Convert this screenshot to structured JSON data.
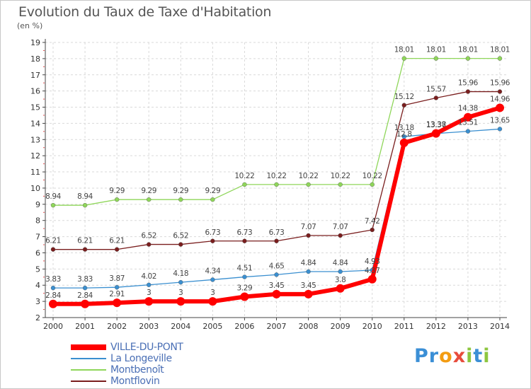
{
  "header": {
    "title": "Evolution du Taux de Taxe d'Habitation",
    "subtitle": "(en %)"
  },
  "logo": {
    "text": "Proxiti",
    "letters": [
      {
        "ch": "P",
        "color": "#3b8fd6"
      },
      {
        "ch": "r",
        "color": "#3b8fd6"
      },
      {
        "ch": "o",
        "color": "#f39c12"
      },
      {
        "ch": "x",
        "color": "#e74c3c"
      },
      {
        "ch": "i",
        "color": "#8dc63f"
      },
      {
        "ch": "t",
        "color": "#3b8fd6"
      },
      {
        "ch": "i",
        "color": "#8dc63f"
      }
    ]
  },
  "chart_data": {
    "type": "line",
    "x": [
      "2000",
      "2001",
      "2002",
      "2003",
      "2004",
      "2005",
      "2006",
      "2007",
      "2008",
      "2009",
      "2010",
      "2011",
      "2012",
      "2013",
      "2014"
    ],
    "ylim": [
      2,
      19
    ],
    "yticks": [
      "2",
      "3",
      "4",
      "5",
      "6",
      "7",
      "8",
      "9",
      "10",
      "11",
      "12",
      "13",
      "14",
      "15",
      "16",
      "17",
      "18",
      "19"
    ],
    "grid": true,
    "legend_position": "bottom-left",
    "series": [
      {
        "name": "VILLE-DU-PONT",
        "color": "#ff0000",
        "values": [
          2.84,
          2.84,
          2.91,
          3,
          3,
          3,
          3.29,
          3.45,
          3.45,
          3.8,
          4.37,
          12.8,
          13.38,
          14.38,
          14.96
        ],
        "labels": [
          "2.84",
          "2.84",
          "2.91",
          "3",
          "3",
          "3",
          "3.29",
          "3.45",
          "3.45",
          "3.8",
          "4.37",
          "12.8",
          "13.38",
          "14.38",
          "14.96"
        ]
      },
      {
        "name": "La Longeville",
        "color": "#3a8fd0",
        "values": [
          3.83,
          3.83,
          3.87,
          4.02,
          4.18,
          4.34,
          4.51,
          4.65,
          4.84,
          4.84,
          4.93,
          13.18,
          13.37,
          13.51,
          13.65
        ],
        "labels": [
          "3.83",
          "3.83",
          "3.87",
          "4.02",
          "4.18",
          "4.34",
          "4.51",
          "4.65",
          "4.84",
          "4.84",
          "4.93",
          "13.18",
          "13.37",
          "13.51",
          "13.65"
        ]
      },
      {
        "name": "Montbenoît",
        "color": "#8fd65a",
        "values": [
          8.94,
          8.94,
          9.29,
          9.29,
          9.29,
          9.29,
          10.22,
          10.22,
          10.22,
          10.22,
          10.22,
          18.01,
          18.01,
          18.01,
          18.01
        ],
        "labels": [
          "8.94",
          "8.94",
          "9.29",
          "9.29",
          "9.29",
          "9.29",
          "10.22",
          "10.22",
          "10.22",
          "10.22",
          "10.22",
          "18.01",
          "18.01",
          "18.01",
          "18.01"
        ]
      },
      {
        "name": "Montflovin",
        "color": "#7a1e1e",
        "values": [
          6.21,
          6.21,
          6.21,
          6.52,
          6.52,
          6.73,
          6.73,
          6.73,
          7.07,
          7.07,
          7.42,
          15.12,
          15.57,
          15.96,
          15.96
        ],
        "labels": [
          "6.21",
          "6.21",
          "6.21",
          "6.52",
          "6.52",
          "6.73",
          "6.73",
          "6.73",
          "7.07",
          "7.07",
          "7.42",
          "15.12",
          "15.57",
          "15.96",
          "15.96"
        ]
      }
    ]
  }
}
